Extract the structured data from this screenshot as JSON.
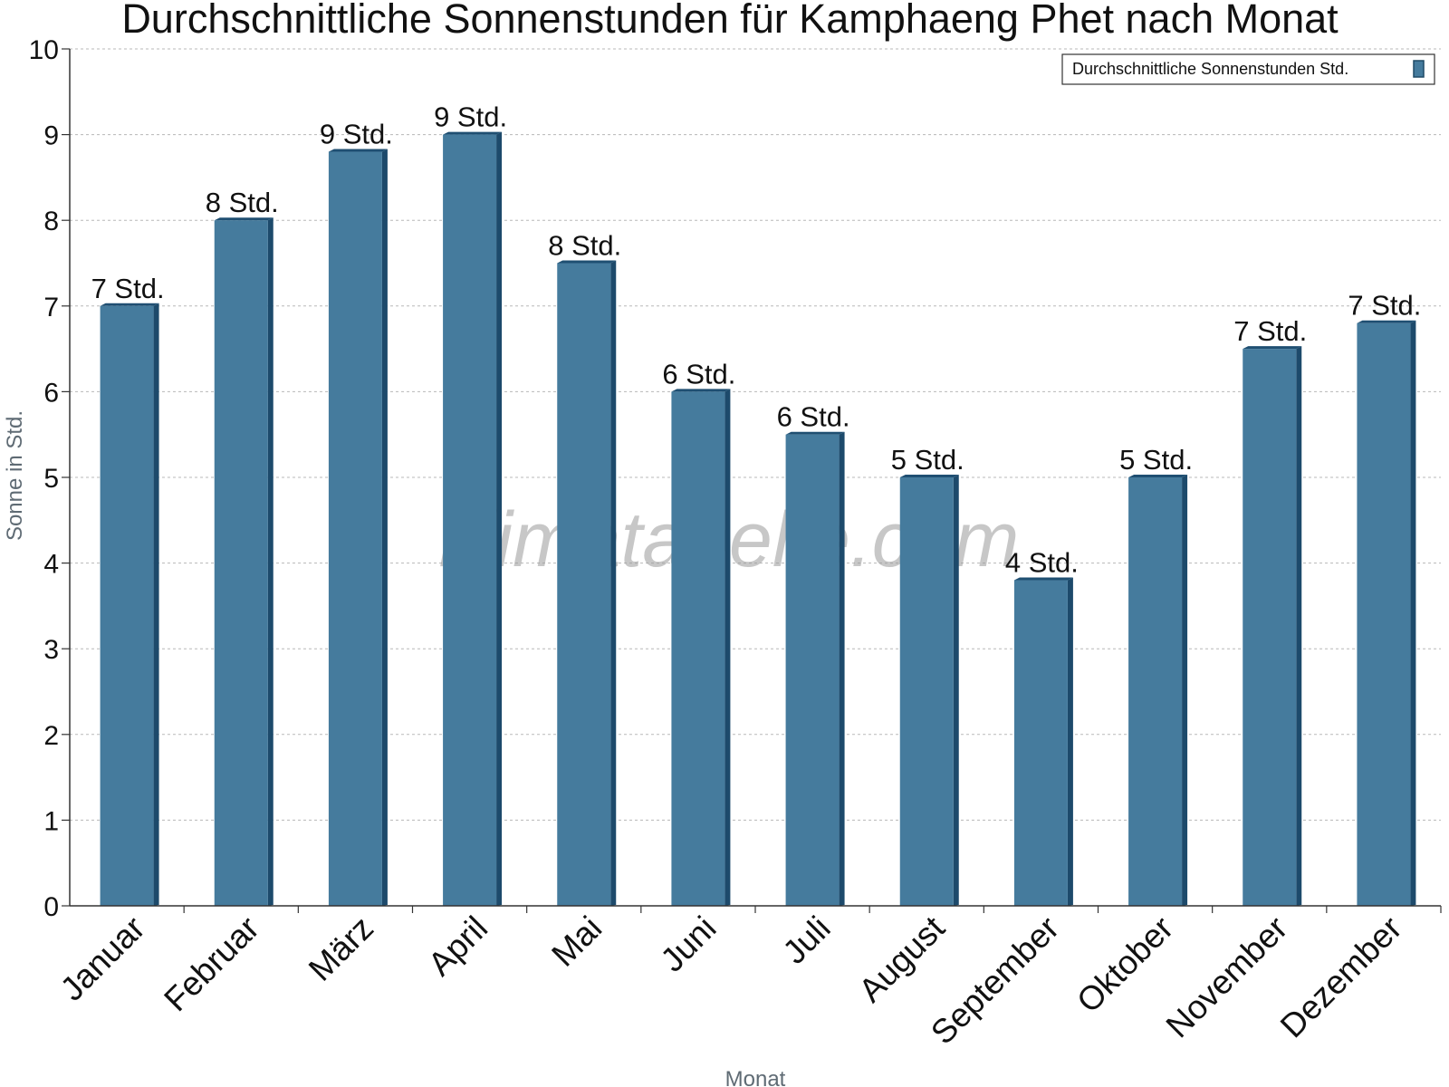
{
  "chart_data": {
    "type": "bar",
    "title": "Durchschnittliche Sonnenstunden für Kamphaeng Phet nach Monat",
    "xlabel": "Monat",
    "ylabel": "Sonne in Std.",
    "ylim": [
      0,
      10
    ],
    "yticks": [
      "0",
      "1",
      "2",
      "3",
      "4",
      "5",
      "6",
      "7",
      "8",
      "9",
      "10"
    ],
    "grid": true,
    "legend_position": "top-right",
    "categories": [
      "Januar",
      "Februar",
      "März",
      "April",
      "Mai",
      "Juni",
      "Juli",
      "August",
      "September",
      "Oktober",
      "November",
      "Dezember"
    ],
    "series": [
      {
        "name": "Durchschnittliche Sonnenstunden Std.",
        "color": "#457b9d",
        "values": [
          7.0,
          8.0,
          8.8,
          9.0,
          7.5,
          6.0,
          5.5,
          5.0,
          3.8,
          5.0,
          6.5,
          6.8
        ],
        "labels": [
          "7 Std.",
          "8 Std.",
          "9 Std.",
          "9 Std.",
          "8 Std.",
          "6 Std.",
          "6 Std.",
          "5 Std.",
          "4 Std.",
          "5 Std.",
          "7 Std.",
          "7 Std."
        ]
      }
    ]
  },
  "watermark": "klimatabelle.com"
}
